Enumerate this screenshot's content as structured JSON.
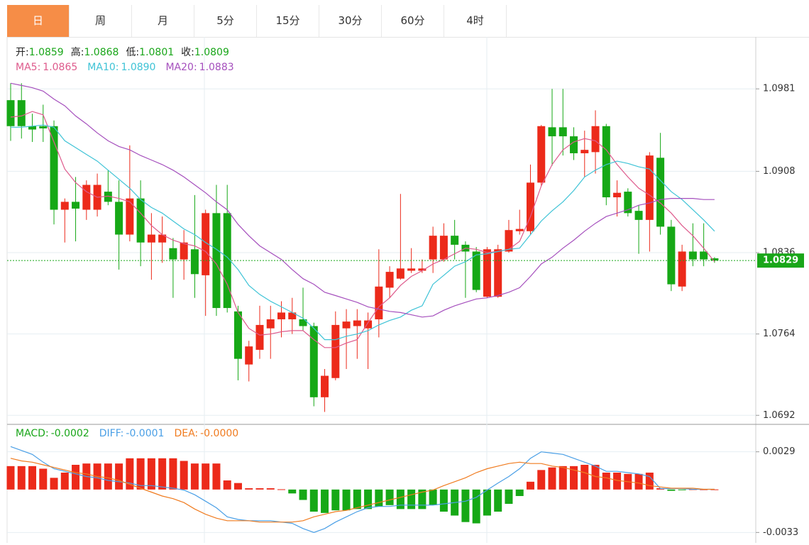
{
  "tabs": {
    "items": [
      "日",
      "周",
      "月",
      "5分",
      "15分",
      "30分",
      "60分",
      "4时"
    ],
    "active": 0
  },
  "chart_data": [
    {
      "type": "candlestick",
      "info_labels": [
        "开:",
        "高:",
        "低:",
        "收:"
      ],
      "info_values": [
        "1.0859",
        "1.0868",
        "1.0801",
        "1.0809"
      ],
      "up_color": "#ec2a1a",
      "down_color": "#16a816",
      "open": [
        1.0971,
        1.0971,
        1.0948,
        1.0948,
        1.0948,
        1.0874,
        1.0881,
        1.0874,
        1.0874,
        1.089,
        1.0881,
        1.0852,
        1.0884,
        1.0845,
        1.0845,
        1.084,
        1.083,
        1.0839,
        1.0816,
        1.0871,
        1.0871,
        1.0784,
        1.0737,
        1.075,
        1.0769,
        1.0777,
        1.0777,
        1.0777,
        1.0771,
        1.0708,
        1.0725,
        1.0769,
        1.0771,
        1.0769,
        1.0777,
        1.0805,
        1.0813,
        1.082,
        1.082,
        1.083,
        1.083,
        1.0851,
        1.0843,
        1.0837,
        1.0797,
        1.0797,
        1.0837,
        1.0855,
        1.0855,
        1.0898,
        1.0947,
        1.0947,
        1.0939,
        1.0924,
        1.0925,
        1.0948,
        1.0885,
        1.089,
        1.0873,
        1.0865,
        1.092,
        1.0859,
        1.0806,
        1.0837,
        1.0837,
        1.0831
      ],
      "high": [
        1.0986,
        1.0986,
        1.0959,
        1.0967,
        1.0953,
        1.0884,
        1.0903,
        1.09,
        1.0906,
        1.0909,
        1.09,
        1.0931,
        1.09,
        1.0871,
        1.0868,
        1.0849,
        1.0856,
        1.0887,
        1.0874,
        1.0896,
        1.0896,
        1.0789,
        1.0758,
        1.0789,
        1.0789,
        1.0793,
        1.0796,
        1.0805,
        1.0774,
        1.0733,
        1.0784,
        1.0786,
        1.0786,
        1.0783,
        1.0839,
        1.0824,
        1.0888,
        1.084,
        1.083,
        1.0859,
        1.0862,
        1.0865,
        1.0846,
        1.0841,
        1.0841,
        1.0843,
        1.0865,
        1.0874,
        1.0914,
        1.0949,
        1.0981,
        1.0981,
        1.0947,
        1.0944,
        1.0962,
        1.095,
        1.09,
        1.0893,
        1.0878,
        1.0925,
        1.0942,
        1.0865,
        1.0843,
        1.0862,
        1.0862,
        1.0832
      ],
      "low": [
        1.0935,
        1.0937,
        1.0934,
        1.0934,
        1.0861,
        1.0845,
        1.0846,
        1.0865,
        1.0868,
        1.0878,
        1.0821,
        1.0846,
        1.0824,
        1.0812,
        1.0827,
        1.0796,
        1.0812,
        1.0796,
        1.078,
        1.078,
        1.0783,
        1.0723,
        1.0722,
        1.0742,
        1.0742,
        1.0761,
        1.0764,
        1.0767,
        1.07,
        1.0695,
        1.0723,
        1.0733,
        1.0742,
        1.0733,
        1.0761,
        1.0796,
        1.0812,
        1.0818,
        1.0818,
        1.0818,
        1.0828,
        1.083,
        1.0796,
        1.0801,
        1.0796,
        1.0796,
        1.0836,
        1.0852,
        1.0852,
        1.0895,
        1.0913,
        1.0922,
        1.0918,
        1.0903,
        1.0906,
        1.0878,
        1.0868,
        1.0868,
        1.0835,
        1.0837,
        1.0852,
        1.0802,
        1.0802,
        1.0824,
        1.0824,
        1.0827
      ],
      "close": [
        1.0948,
        1.0948,
        1.0945,
        1.0946,
        1.0874,
        1.0881,
        1.0875,
        1.0896,
        1.0896,
        1.0881,
        1.0852,
        1.0884,
        1.0845,
        1.0852,
        1.0852,
        1.083,
        1.0845,
        1.0817,
        1.0871,
        1.0787,
        1.0787,
        1.0742,
        1.0753,
        1.0772,
        1.0777,
        1.0783,
        1.0783,
        1.0771,
        1.0708,
        1.0727,
        1.0772,
        1.0775,
        1.0776,
        1.0776,
        1.0806,
        1.0819,
        1.0822,
        1.0822,
        1.0822,
        1.0851,
        1.0851,
        1.0843,
        1.0837,
        1.0803,
        1.0839,
        1.0839,
        1.0856,
        1.0857,
        1.0898,
        1.0948,
        1.0939,
        1.0939,
        1.0924,
        1.0927,
        1.0948,
        1.0885,
        1.0889,
        1.0871,
        1.0865,
        1.0922,
        1.0859,
        1.0808,
        1.0837,
        1.083,
        1.083,
        1.0829
      ],
      "series": [
        {
          "name": "MA5:",
          "value_label": "1.0865",
          "color": "#de5a8c",
          "values": [
            1.0956,
            1.0957,
            1.0961,
            1.0958,
            1.0934,
            1.091,
            1.0898,
            1.089,
            1.0885,
            1.0886,
            1.0884,
            1.0881,
            1.0871,
            1.086,
            1.0852,
            1.0847,
            1.0844,
            1.0842,
            1.0837,
            1.0826,
            1.0808,
            1.0783,
            1.0769,
            1.0763,
            1.0764,
            1.0766,
            1.0767,
            1.0767,
            1.0759,
            1.0752,
            1.0752,
            1.0756,
            1.0759,
            1.0774,
            1.0788,
            1.0796,
            1.0807,
            1.0815,
            1.082,
            1.0826,
            1.083,
            1.0835,
            1.084,
            1.0839,
            1.0836,
            1.0837,
            1.0839,
            1.0846,
            1.0868,
            1.0895,
            1.0914,
            1.0927,
            1.0934,
            1.0937,
            1.0935,
            1.0927,
            1.0914,
            1.0903,
            1.0893,
            1.0887,
            1.088,
            1.0871,
            1.086,
            1.0851,
            1.084,
            1.0828
          ]
        },
        {
          "name": "MA10:",
          "value_label": "1.0890",
          "color": "#3ec3d6",
          "values": [
            1.0947,
            1.0947,
            1.0948,
            1.0949,
            1.0947,
            1.0935,
            1.0929,
            1.0923,
            1.0917,
            1.0909,
            1.0901,
            1.0893,
            1.0883,
            1.0876,
            1.0871,
            1.0864,
            1.0857,
            1.0852,
            1.0845,
            1.0839,
            1.0832,
            1.0821,
            1.0807,
            1.0799,
            1.0793,
            1.0788,
            1.0783,
            1.0778,
            1.0769,
            1.0759,
            1.0759,
            1.0762,
            1.0764,
            1.0767,
            1.0772,
            1.0776,
            1.0779,
            1.0785,
            1.0789,
            1.0808,
            1.0816,
            1.0824,
            1.0828,
            1.0834,
            1.0835,
            1.0837,
            1.0839,
            1.084,
            1.0852,
            1.0864,
            1.0873,
            1.0881,
            1.0891,
            1.0903,
            1.0909,
            1.0914,
            1.0917,
            1.0915,
            1.0912,
            1.091,
            1.09,
            1.089,
            1.0883,
            1.0874,
            1.0865,
            1.0855
          ]
        },
        {
          "name": "MA20:",
          "value_label": "1.0883",
          "color": "#a54fbd",
          "values": [
            1.0986,
            1.0984,
            1.0982,
            1.0979,
            1.0972,
            1.0966,
            1.0957,
            1.095,
            1.0942,
            1.0935,
            1.093,
            1.0927,
            1.0922,
            1.0918,
            1.0914,
            1.0909,
            1.0903,
            1.0896,
            1.0889,
            1.0881,
            1.0874,
            1.0861,
            1.0851,
            1.0842,
            1.0836,
            1.083,
            1.0821,
            1.0813,
            1.0808,
            1.0801,
            1.0798,
            1.0795,
            1.0792,
            1.0788,
            1.0786,
            1.0784,
            1.0783,
            1.0781,
            1.0779,
            1.078,
            1.0785,
            1.0789,
            1.0792,
            1.0795,
            1.0796,
            1.0798,
            1.0801,
            1.0805,
            1.0815,
            1.0826,
            1.0832,
            1.084,
            1.0847,
            1.0855,
            1.0862,
            1.0868,
            1.0871,
            1.0874,
            1.0878,
            1.088,
            1.0883,
            1.0884,
            1.0884,
            1.0884,
            1.0883,
            1.0883
          ]
        }
      ],
      "ylim": [
        1.0684,
        1.1027
      ],
      "yticks": [
        1.0692,
        1.0764,
        1.0836,
        1.0908,
        1.0981
      ],
      "last_price": 1.0829,
      "last_price_color": "#19a619",
      "grid": true
    },
    {
      "type": "macd",
      "series": [
        {
          "name": "MACD:",
          "value_label": "-0.0002",
          "color": "#19a619",
          "up_color": "#ec2a1a",
          "down_color": "#16a816",
          "values": [
            0.0018,
            0.0018,
            0.0018,
            0.0016,
            0.0009,
            0.0013,
            0.0019,
            0.002,
            0.002,
            0.002,
            0.002,
            0.0024,
            0.0024,
            0.0024,
            0.0024,
            0.0024,
            0.0022,
            0.002,
            0.002,
            0.002,
            0.0007,
            0.0005,
            0.0001,
            0.0001,
            0.0001,
            2e-05,
            -0.0003,
            -0.0008,
            -0.0017,
            -0.0018,
            -0.0016,
            -0.0016,
            -0.0015,
            -0.0015,
            -0.0013,
            -0.0012,
            -0.0015,
            -0.0015,
            -0.0015,
            -0.0012,
            -0.0017,
            -0.002,
            -0.0025,
            -0.0026,
            -0.002,
            -0.0017,
            -0.0011,
            -0.0005,
            0.0006,
            0.0015,
            0.0017,
            0.0018,
            0.0018,
            0.0019,
            0.0019,
            0.0013,
            0.0013,
            0.0012,
            0.0012,
            0.0013,
            0.0001,
            -0.0001,
            -4e-05,
            2e-05,
            1e-05,
            1e-05
          ]
        },
        {
          "name": "DIFF:",
          "value_label": "-0.0001",
          "color": "#4a9fe6",
          "values": [
            0.0033,
            0.003,
            0.0027,
            0.0021,
            0.0016,
            0.0014,
            0.0012,
            0.001,
            0.0009,
            0.0007,
            0.0006,
            0.0005,
            0.0003,
            0.0003,
            0.0002,
            0.0001,
            -4e-05,
            -0.0004,
            -0.0009,
            -0.0014,
            -0.0021,
            -0.0023,
            -0.0024,
            -0.0024,
            -0.0024,
            -0.0025,
            -0.0026,
            -0.003,
            -0.0033,
            -0.003,
            -0.0025,
            -0.0021,
            -0.0017,
            -0.0014,
            -0.0013,
            -0.0013,
            -0.0012,
            -0.0012,
            -0.0012,
            -0.0012,
            -0.0011,
            -0.001,
            -0.0009,
            -0.0006,
            -4e-05,
            0.0005,
            0.001,
            0.0016,
            0.0024,
            0.0029,
            0.0028,
            0.0027,
            0.0024,
            0.0021,
            0.0018,
            0.0014,
            0.0014,
            0.0013,
            0.0012,
            0.001,
            7e-05,
            7e-05,
            7e-05,
            2e-05,
            2e-05,
            2e-05
          ]
        },
        {
          "name": "DEA:",
          "value_label": "-0.0000",
          "color": "#f07b1f",
          "values": [
            0.0024,
            0.0022,
            0.0021,
            0.0019,
            0.0017,
            0.0015,
            0.0013,
            0.0012,
            0.001,
            0.0009,
            0.0007,
            0.0004,
            0.0001,
            -0.0002,
            -0.0005,
            -0.0007,
            -0.001,
            -0.0015,
            -0.0019,
            -0.0022,
            -0.0024,
            -0.0024,
            -0.0024,
            -0.0025,
            -0.0025,
            -0.0025,
            -0.0025,
            -0.0024,
            -0.0021,
            -0.0019,
            -0.0017,
            -0.0016,
            -0.0014,
            -0.0012,
            -0.001,
            -0.0008,
            -0.0006,
            -0.0004,
            -0.0002,
            -4e-05,
            0.0003,
            0.0006,
            0.0009,
            0.0013,
            0.0016,
            0.0018,
            0.002,
            0.0021,
            0.002,
            0.002,
            0.0018,
            0.0017,
            0.0015,
            0.0013,
            0.001,
            0.0009,
            0.0007,
            0.0006,
            0.0005,
            0.0003,
            0.0002,
            0.0001,
            0.0001,
            0.0001,
            2e-05,
            2e-05
          ]
        }
      ],
      "ylim": [
        -0.0041,
        0.0049
      ],
      "yticks": [
        0.0029,
        -0.0033
      ],
      "grid": true
    }
  ]
}
